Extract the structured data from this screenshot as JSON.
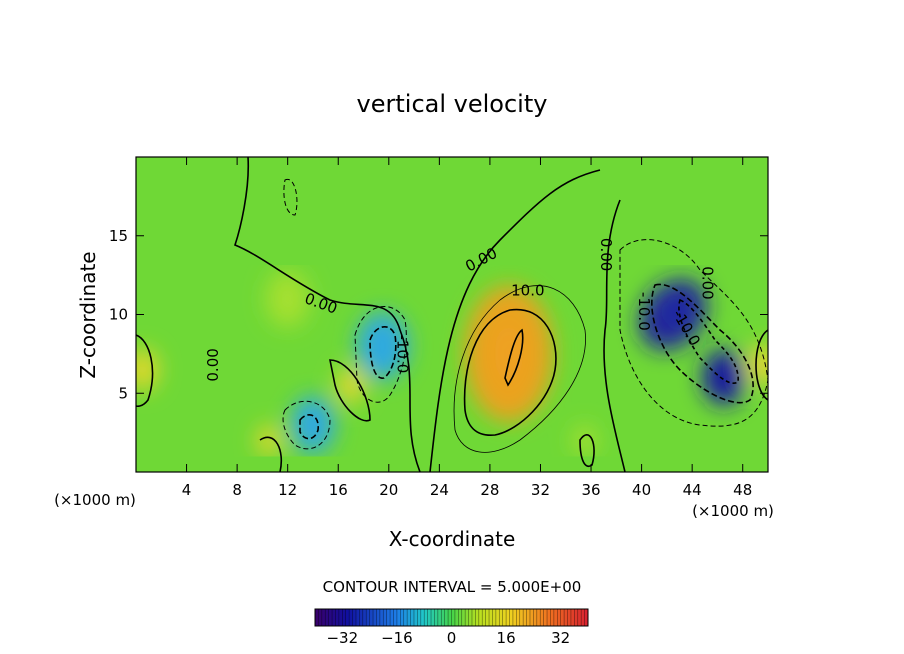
{
  "chart_data": {
    "type": "heatmap",
    "title": "vertical velocity",
    "xlabel": "X-coordinate",
    "ylabel": "Z-coordinate",
    "x_unit_left": "(×1000 m)",
    "x_unit_right": "(×1000 m)",
    "xlim": [
      0,
      50
    ],
    "ylim": [
      0,
      20
    ],
    "x_ticks": [
      4,
      8,
      12,
      16,
      20,
      24,
      28,
      32,
      36,
      40,
      44,
      48
    ],
    "y_ticks": [
      5,
      10,
      15
    ],
    "contour_interval_label": "CONTOUR INTERVAL = 5.000E+00",
    "contour_labels": [
      "0.00",
      "0.00",
      "0.00",
      "0.00",
      "0.00",
      "10.0",
      "-10.0",
      "-10.0",
      "-10.0"
    ],
    "colorbar": {
      "range": [
        -40,
        40
      ],
      "ticks": [
        -32,
        -16,
        0,
        16,
        32
      ],
      "tick_labels": [
        "−32",
        "−16",
        "0",
        "16",
        "32"
      ]
    },
    "features": [
      {
        "x": 29.5,
        "z": 7.5,
        "value": 14
      },
      {
        "x": 19.5,
        "z": 8.0,
        "value": -14
      },
      {
        "x": 42.5,
        "z": 10.0,
        "value": -22
      },
      {
        "x": 46.5,
        "z": 6.0,
        "value": -28
      },
      {
        "x": 14.0,
        "z": 3.0,
        "value": -10
      },
      {
        "x": 0.5,
        "z": 6.5,
        "value": 12
      },
      {
        "x": 49.6,
        "z": 6.8,
        "value": 12
      },
      {
        "x": 17.0,
        "z": 5.5,
        "value": 7
      },
      {
        "x": 10.5,
        "z": 2.0,
        "value": 6
      },
      {
        "x": 35.5,
        "z": 2.0,
        "value": 5
      },
      {
        "x": 12.0,
        "z": 11.0,
        "value": 3
      }
    ],
    "background_value": 1,
    "colors": {
      "negative_strong": "#1a1aa0",
      "negative": "#2aa8e8",
      "zero": "#6fd836",
      "positive": "#f0c020",
      "positive_strong": "#e05020"
    }
  }
}
